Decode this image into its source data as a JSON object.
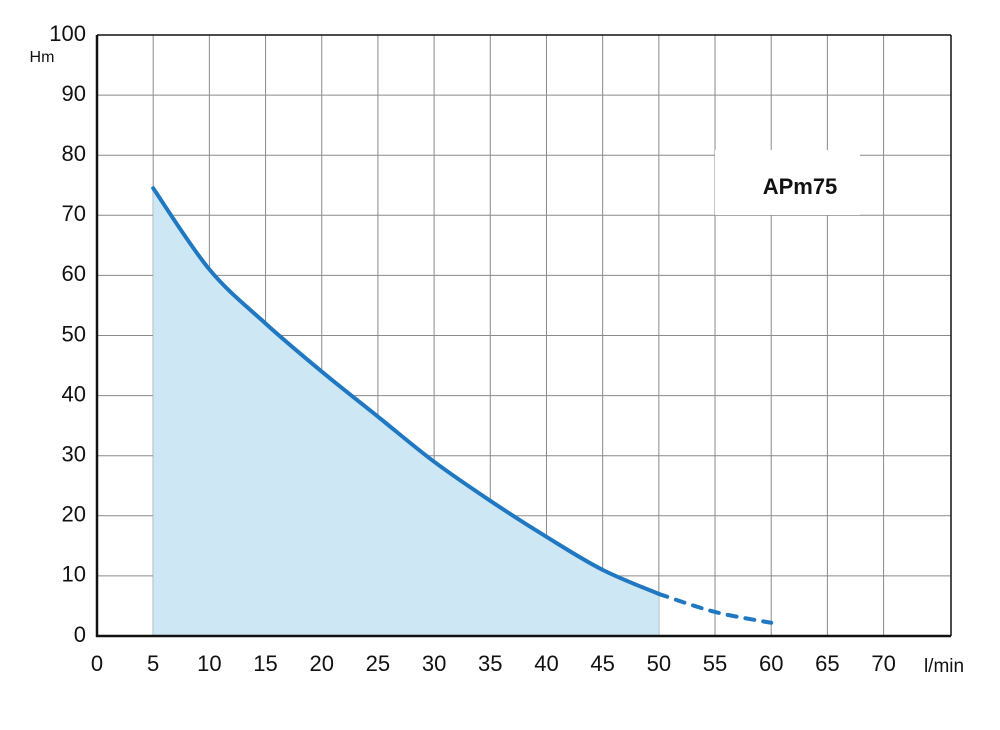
{
  "chart_data": {
    "type": "line",
    "title": "APm75",
    "x_label": "l/min",
    "y_label": "Hm",
    "xlim": [
      0,
      76
    ],
    "ylim": [
      0,
      100
    ],
    "xticks": [
      0,
      5,
      10,
      15,
      20,
      25,
      30,
      35,
      40,
      45,
      50,
      55,
      60,
      65,
      70
    ],
    "yticks": [
      0,
      10,
      20,
      30,
      40,
      50,
      60,
      70,
      80,
      90,
      100
    ],
    "grid": true,
    "series": [
      {
        "color": "#1f78c1",
        "style": "solid",
        "fill": "#cde7f5",
        "x": [
          5,
          10,
          15,
          20,
          25,
          30,
          35,
          40,
          45,
          50
        ],
        "values": [
          74.5,
          61,
          52,
          44,
          36.5,
          29,
          22.5,
          16.5,
          11,
          7
        ]
      },
      {
        "color": "#1f78c1",
        "style": "dashed",
        "x": [
          50,
          55,
          60
        ],
        "values": [
          7,
          4,
          2.2
        ]
      }
    ]
  }
}
